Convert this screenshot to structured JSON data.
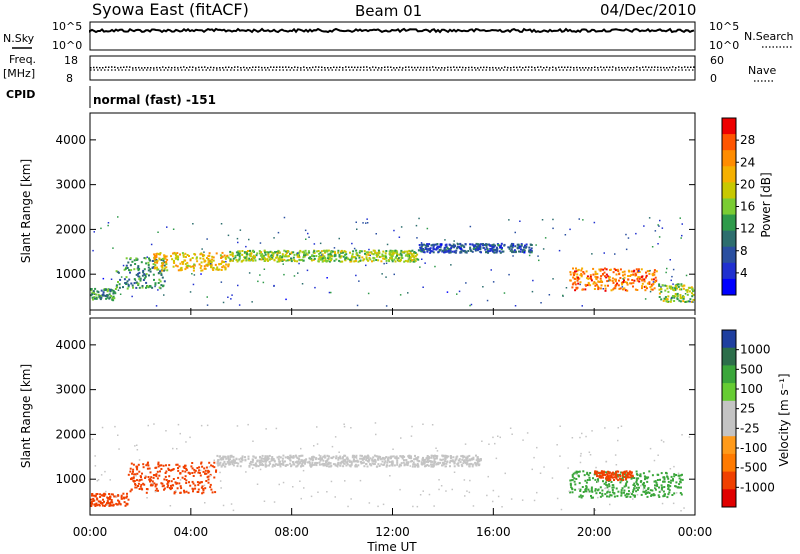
{
  "header": {
    "station": "Syowa East (fitACF)",
    "beam": "Beam 01",
    "date": "04/Dec/2010"
  },
  "top_panels": {
    "nsky": {
      "label": "N.Sky",
      "ticks": [
        "10^5",
        "10^0"
      ]
    },
    "nsearch": {
      "label": "N.Search",
      "ticks": [
        "10^5",
        "10^0"
      ]
    },
    "freq": {
      "label_line1": "Freq.",
      "label_line2": "[MHz]",
      "ticks": [
        "18",
        "8"
      ]
    },
    "nave": {
      "label": "Nave",
      "ticks": [
        "60",
        "0"
      ]
    },
    "cpid": {
      "label": "CPID",
      "value": "normal (fast) -151"
    }
  },
  "panels": {
    "power": {
      "ylabel": "Slant Range [km]",
      "colorbar_label": "Power [dB]",
      "colorbar_ticks": [
        "28",
        "24",
        "20",
        "16",
        "12",
        "8",
        "4"
      ],
      "colors": [
        "#ee0000",
        "#ff5500",
        "#ff8c00",
        "#f5b000",
        "#c8c800",
        "#7acc33",
        "#2e9a4a",
        "#2d6e6e",
        "#2a4fa0",
        "#2030d0",
        "#0000ff"
      ]
    },
    "velocity": {
      "ylabel": "Slant Range [km]",
      "colorbar_label": "Velocity [m s⁻¹]",
      "colorbar_ticks": [
        "1000",
        "500",
        "100",
        "25",
        "-25",
        "-100",
        "-500",
        "-1000"
      ],
      "colors": [
        "#1f3f9f",
        "#2c6e4a",
        "#3aa63a",
        "#66cc33",
        "#c4c4c4",
        "#c4c4c4",
        "#ff9a1a",
        "#ff7a00",
        "#f04000",
        "#e00000"
      ]
    }
  },
  "chart_data": {
    "type": "heatmap",
    "xlabel": "Time UT",
    "x_ticks": [
      "00:00",
      "04:00",
      "08:00",
      "12:00",
      "16:00",
      "20:00",
      "00:00"
    ],
    "xlim_hours": [
      0,
      24
    ],
    "ylim_km": [
      200,
      4600
    ],
    "y_ticks": [
      1000,
      2000,
      3000,
      4000
    ],
    "power_regions": [
      {
        "t0": 0.0,
        "t1": 1.0,
        "r0": 420,
        "r1": 700,
        "value": 12
      },
      {
        "t0": 1.0,
        "t1": 3.0,
        "r0": 700,
        "r1": 1400,
        "value": 12
      },
      {
        "t0": 2.5,
        "t1": 5.5,
        "r0": 1100,
        "r1": 1500,
        "value": 20
      },
      {
        "t0": 5.5,
        "t1": 13.0,
        "r0": 1300,
        "r1": 1550,
        "value": 16
      },
      {
        "t0": 13.0,
        "t1": 17.5,
        "r0": 1500,
        "r1": 1700,
        "value": 8
      },
      {
        "t0": 19.0,
        "t1": 22.5,
        "r0": 650,
        "r1": 1150,
        "value": 24
      },
      {
        "t0": 22.5,
        "t1": 24.0,
        "r0": 400,
        "r1": 800,
        "value": 16
      }
    ],
    "velocity_regions": [
      {
        "t0": 0.0,
        "t1": 1.5,
        "r0": 420,
        "r1": 700,
        "value": -500
      },
      {
        "t0": 1.5,
        "t1": 5.0,
        "r0": 700,
        "r1": 1400,
        "value": -500
      },
      {
        "t0": 5.0,
        "t1": 15.5,
        "r0": 1300,
        "r1": 1550,
        "value": 0
      },
      {
        "t0": 19.0,
        "t1": 23.5,
        "r0": 600,
        "r1": 1200,
        "value": 100
      },
      {
        "t0": 20.0,
        "t1": 21.5,
        "r0": 1000,
        "r1": 1200,
        "value": -500
      }
    ]
  }
}
